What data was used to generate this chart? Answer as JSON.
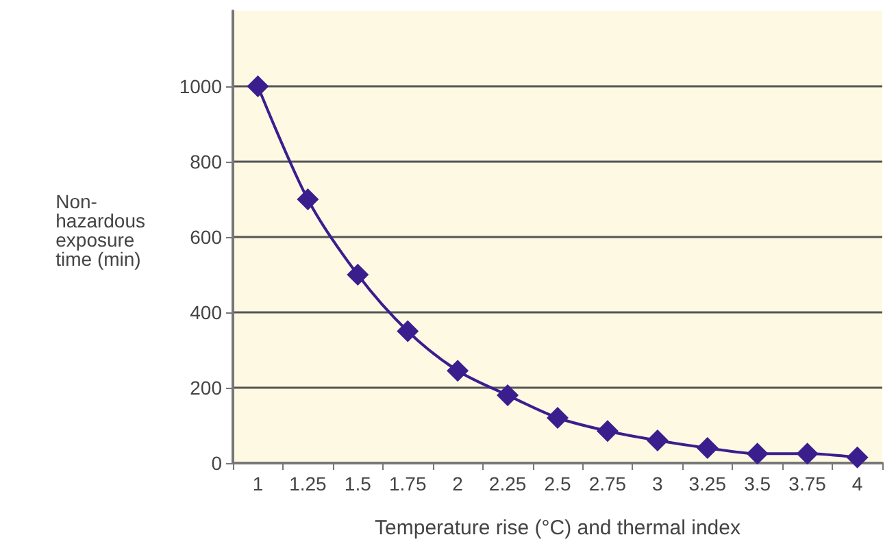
{
  "chart_data": {
    "type": "line",
    "xlabel": "Temperature rise (°C) and thermal index",
    "ylabel": "Non-\nhazardous\nexposure\ntime (min)",
    "categories": [
      "1",
      "1.25",
      "1.5",
      "1.75",
      "2",
      "2.25",
      "2.5",
      "2.75",
      "3",
      "3.25",
      "3.5",
      "3.75",
      "4"
    ],
    "series": [
      {
        "color": "#3b1e8e",
        "values": [
          1000,
          700,
          500,
          350,
          245,
          180,
          120,
          85,
          60,
          40,
          25,
          25,
          15
        ]
      }
    ],
    "ylim": [
      0,
      1200
    ],
    "yticks": [
      0,
      200,
      400,
      600,
      800,
      1000
    ],
    "grid": "y",
    "marker": "diamond",
    "line_style": "solid"
  }
}
